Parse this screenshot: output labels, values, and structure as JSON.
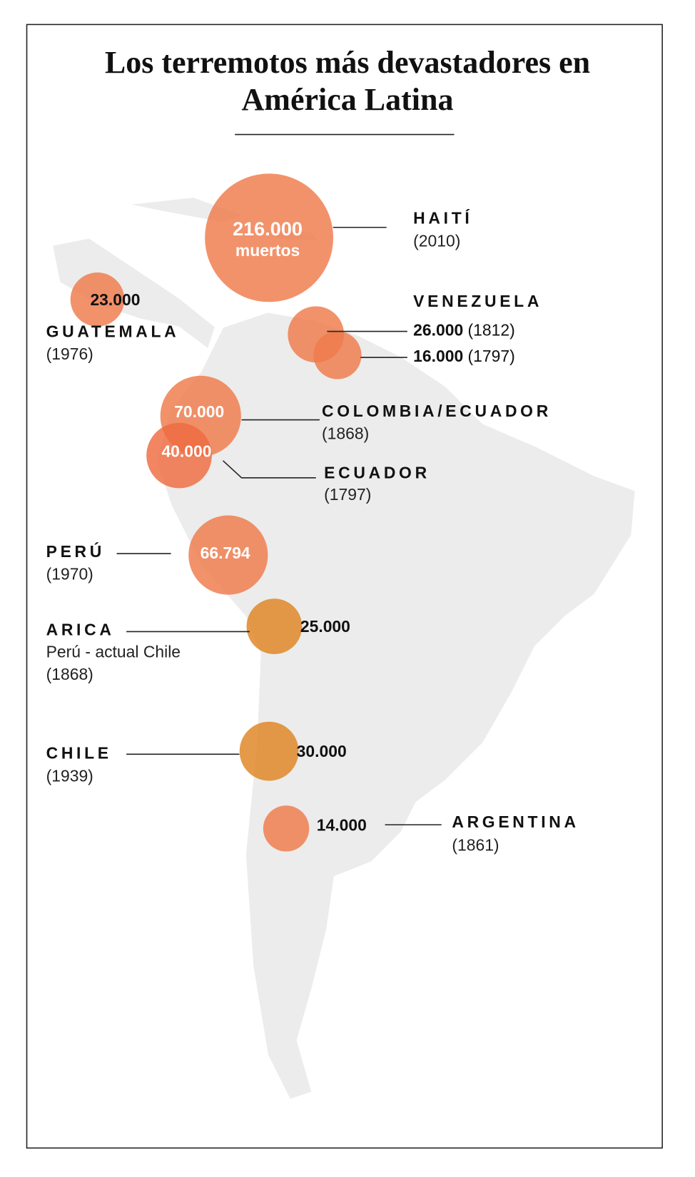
{
  "title": "Los terremotos más devastadores en América Latina",
  "places": [
    {
      "name": "HAITÍ",
      "year": "(2010)",
      "events": [
        {
          "deaths": 216000,
          "deaths_label": "216.000",
          "unit": "muertos",
          "color": "#ef7a4a"
        }
      ]
    },
    {
      "name": "GUATEMALA",
      "year": "(1976)",
      "events": [
        {
          "deaths": 23000,
          "deaths_label": "23.000",
          "color": "#ef7a4a"
        }
      ]
    },
    {
      "name": "VENEZUELA",
      "events": [
        {
          "deaths": 26000,
          "deaths_label": "26.000",
          "year": "(1812)",
          "color": "#ef7a4a"
        },
        {
          "deaths": 16000,
          "deaths_label": "16.000",
          "year": "(1797)",
          "color": "#ef7a4a"
        }
      ]
    },
    {
      "name": "COLOMBIA/ECUADOR",
      "year": "(1868)",
      "events": [
        {
          "deaths": 70000,
          "deaths_label": "70.000",
          "color": "#ef7a4a"
        }
      ]
    },
    {
      "name": "ECUADOR",
      "year": "(1797)",
      "events": [
        {
          "deaths": 40000,
          "deaths_label": "40.000",
          "color": "#ef6a3f"
        }
      ]
    },
    {
      "name": "PERÚ",
      "year": "(1970)",
      "events": [
        {
          "deaths": 66794,
          "deaths_label": "66.794",
          "color": "#ef7a4a"
        }
      ]
    },
    {
      "name": "ARICA",
      "note": "Perú - actual Chile",
      "year": "(1868)",
      "events": [
        {
          "deaths": 25000,
          "deaths_label": "25.000",
          "color": "#de8420"
        }
      ]
    },
    {
      "name": "CHILE",
      "year": "(1939)",
      "events": [
        {
          "deaths": 30000,
          "deaths_label": "30.000",
          "color": "#de8420"
        }
      ]
    },
    {
      "name": "ARGENTINA",
      "year": "(1861)",
      "events": [
        {
          "deaths": 14000,
          "deaths_label": "14.000",
          "color": "#ef7a4a"
        }
      ]
    }
  ]
}
